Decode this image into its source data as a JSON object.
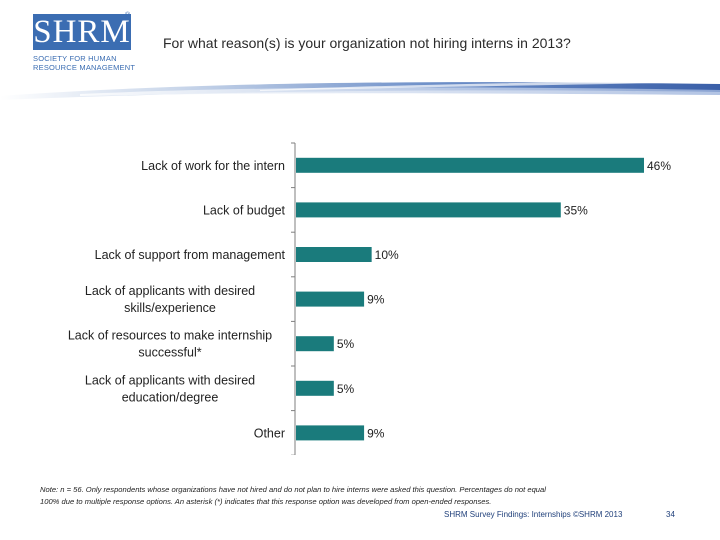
{
  "logo": {
    "mark": "SHRM",
    "registered": "®",
    "line1": "SOCIETY FOR HUMAN",
    "line2": "RESOURCE MANAGEMENT"
  },
  "title": "For what reason(s) is your organization not hiring interns in 2013?",
  "colors": {
    "bar": "#1a7b7c",
    "axis": "#7f7f7f",
    "brand_blue": "#3b6db2"
  },
  "chart_data": {
    "type": "bar",
    "orientation": "horizontal",
    "categories": [
      "Lack of work for the intern",
      "Lack of budget",
      "Lack of support from management",
      "Lack of applicants with desired skills/experience",
      "Lack of resources to make internship successful*",
      "Lack of applicants with desired education/degree",
      "Other"
    ],
    "category_lines": [
      [
        "Lack of work for the intern"
      ],
      [
        "Lack of budget"
      ],
      [
        "Lack of support from management"
      ],
      [
        "Lack of applicants with desired",
        "skills/experience"
      ],
      [
        "Lack of resources to make internship",
        "successful*"
      ],
      [
        "Lack of applicants with desired",
        "education/degree"
      ],
      [
        "Other"
      ]
    ],
    "values": [
      46,
      35,
      10,
      9,
      5,
      5,
      9
    ],
    "value_labels": [
      "46%",
      "35%",
      "10%",
      "9%",
      "5%",
      "5%",
      "9%"
    ],
    "unit": "%",
    "xlim": [
      0,
      46
    ],
    "grid": false,
    "legend": "none"
  },
  "note": {
    "line1": "Note: n = 56. Only respondents whose organizations have not hired and do not plan to hire interns were asked this question. Percentages do not equal",
    "line2": "100% due to multiple response options. An asterisk (*) indicates that this response option was developed from open-ended responses."
  },
  "footer": {
    "text": "SHRM Survey Findings: Internships ©SHRM 2013",
    "page": "34"
  }
}
